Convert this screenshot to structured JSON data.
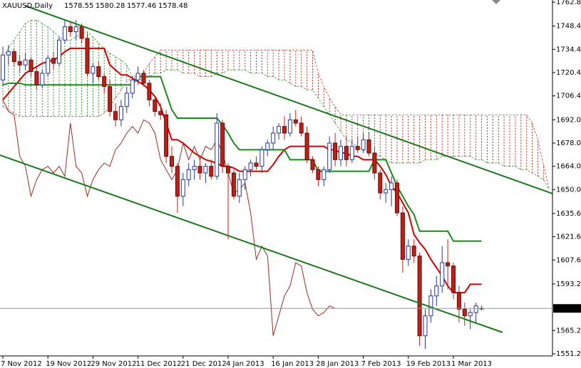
{
  "chart_data": {
    "type": "candlestick",
    "title": "XAUUSD,Daily",
    "categories": [
      "7 Nov 2012",
      null,
      null,
      null,
      null,
      null,
      null,
      null,
      "19 Nov 2012",
      null,
      null,
      null,
      null,
      null,
      null,
      null,
      "29 Nov 2012",
      null,
      null,
      null,
      null,
      null,
      null,
      null,
      "11 Dec 2012",
      null,
      null,
      null,
      null,
      null,
      null,
      null,
      "21 Dec 2012",
      null,
      null,
      null,
      null,
      null,
      null,
      null,
      "4 Jan 2013",
      null,
      null,
      null,
      null,
      null,
      null,
      null,
      "16 Jan 2013",
      null,
      null,
      null,
      null,
      null,
      null,
      null,
      "28 Jan 2013",
      null,
      null,
      null,
      null,
      null,
      null,
      null,
      "7 Feb 2013",
      null,
      null,
      null,
      null,
      null,
      null,
      null,
      "19 Feb 2013",
      null,
      null,
      null,
      null,
      null,
      null,
      null,
      "1 Mar 2013",
      null,
      null,
      null,
      null,
      null,
      null,
      null,
      null,
      null,
      null,
      null,
      null,
      null,
      null,
      null,
      null,
      null
    ],
    "open": [
      1716,
      1731,
      1733,
      1727,
      1725,
      1728,
      1721,
      1713,
      1720,
      1729,
      1726,
      1740,
      1748,
      1745,
      1748,
      1741,
      1720,
      1724,
      1718,
      1712,
      1697,
      1692,
      1700,
      1708,
      1716,
      1720,
      1714,
      1704,
      1697,
      1695,
      1670,
      1664,
      1646,
      1656,
      1662,
      1664,
      1660,
      1664,
      1658,
      1690,
      1664,
      1660,
      1646,
      1656,
      1662,
      1666,
      1664,
      1674,
      1678,
      1684,
      1688,
      1684,
      1692,
      1690,
      1684,
      1668,
      1662,
      1656,
      1662,
      1678,
      1668,
      1676,
      1668,
      1676,
      1674,
      1680,
      1672,
      1660,
      1648,
      1650,
      1654,
      1636,
      1608,
      1616,
      1610,
      1562,
      1574,
      1586,
      1592,
      1606,
      1604,
      1588,
      1578,
      1574,
      1576,
      1578.55,
      null,
      null,
      null,
      null,
      null,
      null,
      null,
      null,
      null,
      null,
      null,
      null
    ],
    "high": [
      1736,
      1737,
      1735,
      1731,
      1732,
      1730,
      1724,
      1722,
      1731,
      1733,
      1742,
      1752,
      1751,
      1752,
      1750,
      1744,
      1726,
      1727,
      1720,
      1716,
      1702,
      1704,
      1712,
      1718,
      1724,
      1722,
      1716,
      1706,
      1702,
      1698,
      1676,
      1666,
      1660,
      1666,
      1668,
      1668,
      1666,
      1668,
      1696,
      1692,
      1666,
      1662,
      1660,
      1664,
      1668,
      1670,
      1676,
      1680,
      1688,
      1690,
      1694,
      1696,
      1698,
      1694,
      1688,
      1670,
      1664,
      1664,
      1682,
      1684,
      1680,
      1682,
      1680,
      1682,
      1684,
      1684,
      1676,
      1662,
      1654,
      1658,
      1656,
      1640,
      1620,
      1620,
      1612,
      1578,
      1590,
      1598,
      1616,
      1620,
      1606,
      1592,
      1582,
      1578,
      1582,
      1580.28,
      null,
      null,
      null,
      null,
      null,
      null,
      null,
      null,
      null,
      null,
      null,
      null
    ],
    "low": [
      1712,
      1725,
      1724,
      1720,
      1722,
      1718,
      1710,
      1711,
      1718,
      1722,
      1724,
      1738,
      1742,
      1740,
      1738,
      1718,
      1714,
      1716,
      1708,
      1694,
      1688,
      1688,
      1696,
      1705,
      1713,
      1712,
      1700,
      1694,
      1692,
      1666,
      1660,
      1636,
      1640,
      1652,
      1656,
      1656,
      1654,
      1656,
      1656,
      1660,
      1620,
      1644,
      1642,
      1650,
      1658,
      1662,
      1660,
      1670,
      1674,
      1680,
      1680,
      1682,
      1688,
      1682,
      1666,
      1660,
      1652,
      1652,
      1660,
      1664,
      1664,
      1664,
      1666,
      1672,
      1672,
      1670,
      1656,
      1644,
      1642,
      1640,
      1634,
      1600,
      1604,
      1606,
      1556,
      1554,
      1570,
      1580,
      1588,
      1590,
      1584,
      1570,
      1568,
      1566,
      1570,
      1577.46,
      null,
      null,
      null,
      null,
      null,
      null,
      null,
      null,
      null,
      null,
      null,
      null
    ],
    "close": [
      1731,
      1733,
      1727,
      1725,
      1728,
      1721,
      1713,
      1720,
      1729,
      1726,
      1740,
      1748,
      1745,
      1748,
      1741,
      1720,
      1724,
      1718,
      1712,
      1697,
      1692,
      1700,
      1708,
      1716,
      1720,
      1714,
      1704,
      1697,
      1695,
      1670,
      1664,
      1646,
      1656,
      1662,
      1664,
      1660,
      1664,
      1658,
      1690,
      1664,
      1660,
      1646,
      1656,
      1662,
      1666,
      1664,
      1674,
      1678,
      1684,
      1688,
      1684,
      1692,
      1690,
      1684,
      1668,
      1662,
      1656,
      1662,
      1678,
      1668,
      1676,
      1668,
      1676,
      1674,
      1680,
      1672,
      1660,
      1648,
      1650,
      1654,
      1636,
      1608,
      1616,
      1610,
      1562,
      1574,
      1586,
      1592,
      1606,
      1604,
      1588,
      1578,
      1574,
      1576,
      1580,
      1578.48,
      null,
      null,
      null,
      null,
      null,
      null,
      null,
      null,
      null,
      null,
      null,
      null
    ],
    "up_color": "#2236a0",
    "down_color": "#c41e14",
    "lines": [
      {
        "color": "#d40000",
        "width": 2,
        "values": [
          1704,
          1708,
          1712,
          1716,
          1720,
          1722,
          1724,
          1726,
          1727,
          1728,
          1730,
          1733,
          1735,
          1735,
          1735,
          1735,
          1735,
          1735,
          1735,
          1725,
          1722,
          1719,
          1719,
          1717,
          1715,
          1713,
          1710,
          1706,
          1700,
          1690,
          1680,
          1680,
          1678,
          1675,
          1672,
          1670,
          1668,
          1667,
          1666,
          1664,
          1664,
          1663,
          1661,
          1661,
          1661,
          1661,
          1661,
          1661,
          1665,
          1670,
          1674,
          1676,
          1676,
          1676,
          1676,
          1676,
          1676,
          1676,
          1674,
          1674,
          1672,
          1672,
          1670,
          1670,
          1668,
          1668,
          1668,
          1664,
          1659,
          1652,
          1648,
          1642,
          1636,
          1623,
          1618,
          1614,
          1608,
          1603,
          1598,
          1592,
          1588,
          1588,
          1588,
          1593,
          1593,
          1593,
          null,
          null,
          null,
          null,
          null,
          null,
          null,
          null,
          null,
          null,
          null,
          null
        ]
      },
      {
        "color": "#1a8a1a",
        "width": 2,
        "values": [
          1713,
          1714,
          1714,
          1714,
          1713,
          1713,
          1713,
          1713,
          1713,
          1713,
          1713,
          1713,
          1713,
          1713,
          1713,
          1713,
          1713,
          1713,
          1713,
          1713,
          1713,
          1713,
          1713,
          1713,
          1718,
          1718,
          1718,
          1718,
          1718,
          1708,
          1698,
          1693,
          1693,
          1693,
          1693,
          1693,
          1693,
          1693,
          1693,
          1689,
          1684,
          1678,
          1674,
          1674,
          1674,
          1674,
          1674,
          1674,
          1674,
          1674,
          1674,
          1668,
          1668,
          1668,
          1668,
          1668,
          1661,
          1661,
          1661,
          1661,
          1661,
          1661,
          1661,
          1661,
          1661,
          1661,
          1668,
          1668,
          1668,
          1660,
          1652,
          1646,
          1640,
          1635,
          1625,
          1625,
          1625,
          1625,
          1625,
          1625,
          1619,
          1619,
          1619,
          1619,
          1619,
          1619,
          null,
          null,
          null,
          null,
          null,
          null,
          null,
          null,
          null,
          null,
          null,
          null
        ]
      },
      {
        "color": "#9b2c1e",
        "width": 1,
        "values": [
          1704,
          1697,
          1695,
          1670,
          1664,
          1646,
          1656,
          1662,
          1664,
          1660,
          1664,
          1658,
          1690,
          1664,
          1660,
          1646,
          1656,
          1662,
          1666,
          1664,
          1674,
          1678,
          1684,
          1688,
          1684,
          1692,
          1690,
          1684,
          1668,
          1662,
          1656,
          1662,
          1678,
          1668,
          1676,
          1668,
          1676,
          1674,
          1680,
          1672,
          1660,
          1648,
          1650,
          1654,
          1636,
          1608,
          1616,
          1610,
          1562,
          1574,
          1586,
          1592,
          1606,
          1604,
          1588,
          1578,
          1574,
          1576,
          1580,
          1578.48,
          null,
          null,
          null,
          null,
          null,
          null,
          null,
          null,
          null,
          null,
          null,
          null,
          null,
          null,
          null,
          null,
          null,
          null,
          null,
          null,
          null,
          null,
          null,
          null,
          null,
          null,
          null,
          null,
          null,
          null,
          null,
          null,
          null,
          null,
          null,
          null,
          null,
          null
        ]
      }
    ],
    "cloud": {
      "up_color": "#2a8a2a",
      "down_color": "#b03020",
      "span_a": [
        1730,
        1735,
        1740,
        1745,
        1750,
        1752,
        1752,
        1750,
        1748,
        1745,
        1742,
        1740,
        1740,
        1742,
        1744,
        1745,
        1742,
        1738,
        1735,
        1732,
        1730,
        1728,
        1725,
        1718,
        1716,
        1716,
        1718,
        1720,
        1720,
        1722,
        1722,
        1722,
        1720,
        1720,
        1720,
        1718,
        1718,
        1718,
        1720,
        1720,
        1722,
        1722,
        1722,
        1722,
        1720,
        1720,
        1720,
        1718,
        1718,
        1716,
        1716,
        1714,
        1712,
        1712,
        1710,
        1710,
        1705,
        1700,
        1695,
        1690,
        1685,
        1680,
        1678,
        1676,
        1674,
        1672,
        1672,
        1670,
        1668,
        1666,
        1666,
        1666,
        1666,
        1666,
        1666,
        1668,
        1668,
        1668,
        1670,
        1670,
        1670,
        1670,
        1670,
        1670,
        1668,
        1668,
        1666,
        1666,
        1666,
        1664,
        1664,
        1664,
        1662,
        1662,
        1660,
        1658,
        1656,
        1650
      ],
      "span_b": [
        1700,
        1698,
        1696,
        1694,
        1694,
        1694,
        1694,
        1694,
        1694,
        1694,
        1694,
        1694,
        1694,
        1694,
        1694,
        1694,
        1694,
        1694,
        1696,
        1700,
        1705,
        1710,
        1715,
        1718,
        1718,
        1720,
        1726,
        1730,
        1734,
        1734,
        1734,
        1734,
        1734,
        1734,
        1734,
        1734,
        1734,
        1734,
        1734,
        1734,
        1734,
        1734,
        1734,
        1734,
        1734,
        1734,
        1734,
        1734,
        1734,
        1734,
        1734,
        1734,
        1734,
        1734,
        1734,
        1734,
        1720,
        1712,
        1705,
        1700,
        1695,
        1695,
        1695,
        1695,
        1695,
        1695,
        1695,
        1695,
        1695,
        1695,
        1695,
        1695,
        1695,
        1695,
        1695,
        1695,
        1695,
        1695,
        1695,
        1695,
        1695,
        1695,
        1695,
        1695,
        1695,
        1695,
        1695,
        1695,
        1695,
        1695,
        1695,
        1695,
        1695,
        1695,
        1690,
        1680,
        1665,
        1650
      ]
    },
    "ylim": [
      1549.9,
      1764.1
    ],
    "yticks": [
      {
        "value": 1762.8,
        "label": "1762.80"
      },
      {
        "value": 1748.4,
        "label": "1748.40"
      },
      {
        "value": 1734.4,
        "label": "1734.40"
      },
      {
        "value": 1720.4,
        "label": "1720.40"
      },
      {
        "value": 1706.4,
        "label": "1706.40"
      },
      {
        "value": 1692,
        "label": "1692.00"
      },
      {
        "value": 1678,
        "label": "1678.00"
      },
      {
        "value": 1664,
        "label": "1664.00"
      },
      {
        "value": 1650,
        "label": "1650.00"
      },
      {
        "value": 1635.6,
        "label": "1635.60"
      },
      {
        "value": 1621.6,
        "label": "1621.60"
      },
      {
        "value": 1607.6,
        "label": "1607.60"
      },
      {
        "value": 1593.2,
        "label": "1593.20"
      },
      {
        "value": 1565.2,
        "label": "1565.20"
      },
      {
        "value": 1551.2,
        "label": "1551.20"
      }
    ]
  }
}
